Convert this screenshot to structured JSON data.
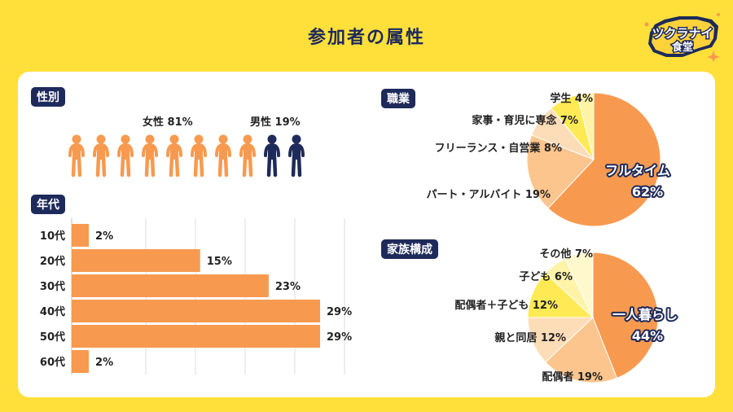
{
  "page_title": "参加者の属性",
  "logo": {
    "line1": "ツクラナイ",
    "line2": "食堂"
  },
  "colors": {
    "background": "#FFE03A",
    "navy": "#1E2A5A",
    "orange": "#F79A50",
    "pale_orange": "#FCC58E",
    "peach": "#FDDCB8",
    "yellow": "#FFEA55",
    "pale_yellow": "#FFF3A8"
  },
  "gender": {
    "tag": "性別",
    "female_label": "女性 81%",
    "male_label": "男性 19%",
    "female_icon_count": 8,
    "male_icon_count": 2
  },
  "age": {
    "tag": "年代"
  },
  "occupation": {
    "tag": "職業"
  },
  "family": {
    "tag": "家族構成"
  },
  "chart_data": [
    {
      "type": "bar",
      "orientation": "horizontal",
      "categories": [
        "10代",
        "20代",
        "30代",
        "40代",
        "50代",
        "60代"
      ],
      "values": [
        2,
        15,
        23,
        29,
        29,
        2
      ],
      "value_labels": [
        "2%",
        "15%",
        "23%",
        "29%",
        "29%",
        "2%"
      ],
      "xlim": [
        0,
        29
      ],
      "grid": true
    },
    {
      "type": "pie",
      "labels": [
        "フルタイム",
        "パート・アルバイト",
        "フリーランス・自営業",
        "家事・育児に専念",
        "学生"
      ],
      "values": [
        62,
        19,
        8,
        7,
        4
      ],
      "value_labels": [
        "フルタイム 62%",
        "パート・アルバイト 19%",
        "フリーランス・自営業 8%",
        "家事・育児に専念 7%",
        "学生 4%"
      ],
      "colors": [
        "#F79A50",
        "#FCC58E",
        "#FDDCB8",
        "#FFEA55",
        "#FFF3A8"
      ]
    },
    {
      "type": "pie",
      "labels": [
        "一人暮らし",
        "配偶者",
        "親と同居",
        "配偶者＋子ども",
        "子ども",
        "その他"
      ],
      "values": [
        44,
        19,
        12,
        12,
        6,
        7
      ],
      "value_labels": [
        "一人暮らし 44%",
        "配偶者 19%",
        "親と同居 12%",
        "配偶者＋子ども 12%",
        "子ども 6%",
        "その他 7%"
      ],
      "colors": [
        "#F79A50",
        "#FCC58E",
        "#FDDCB8",
        "#FFEA55",
        "#FFF3A8",
        "#FFF8CC"
      ]
    }
  ]
}
